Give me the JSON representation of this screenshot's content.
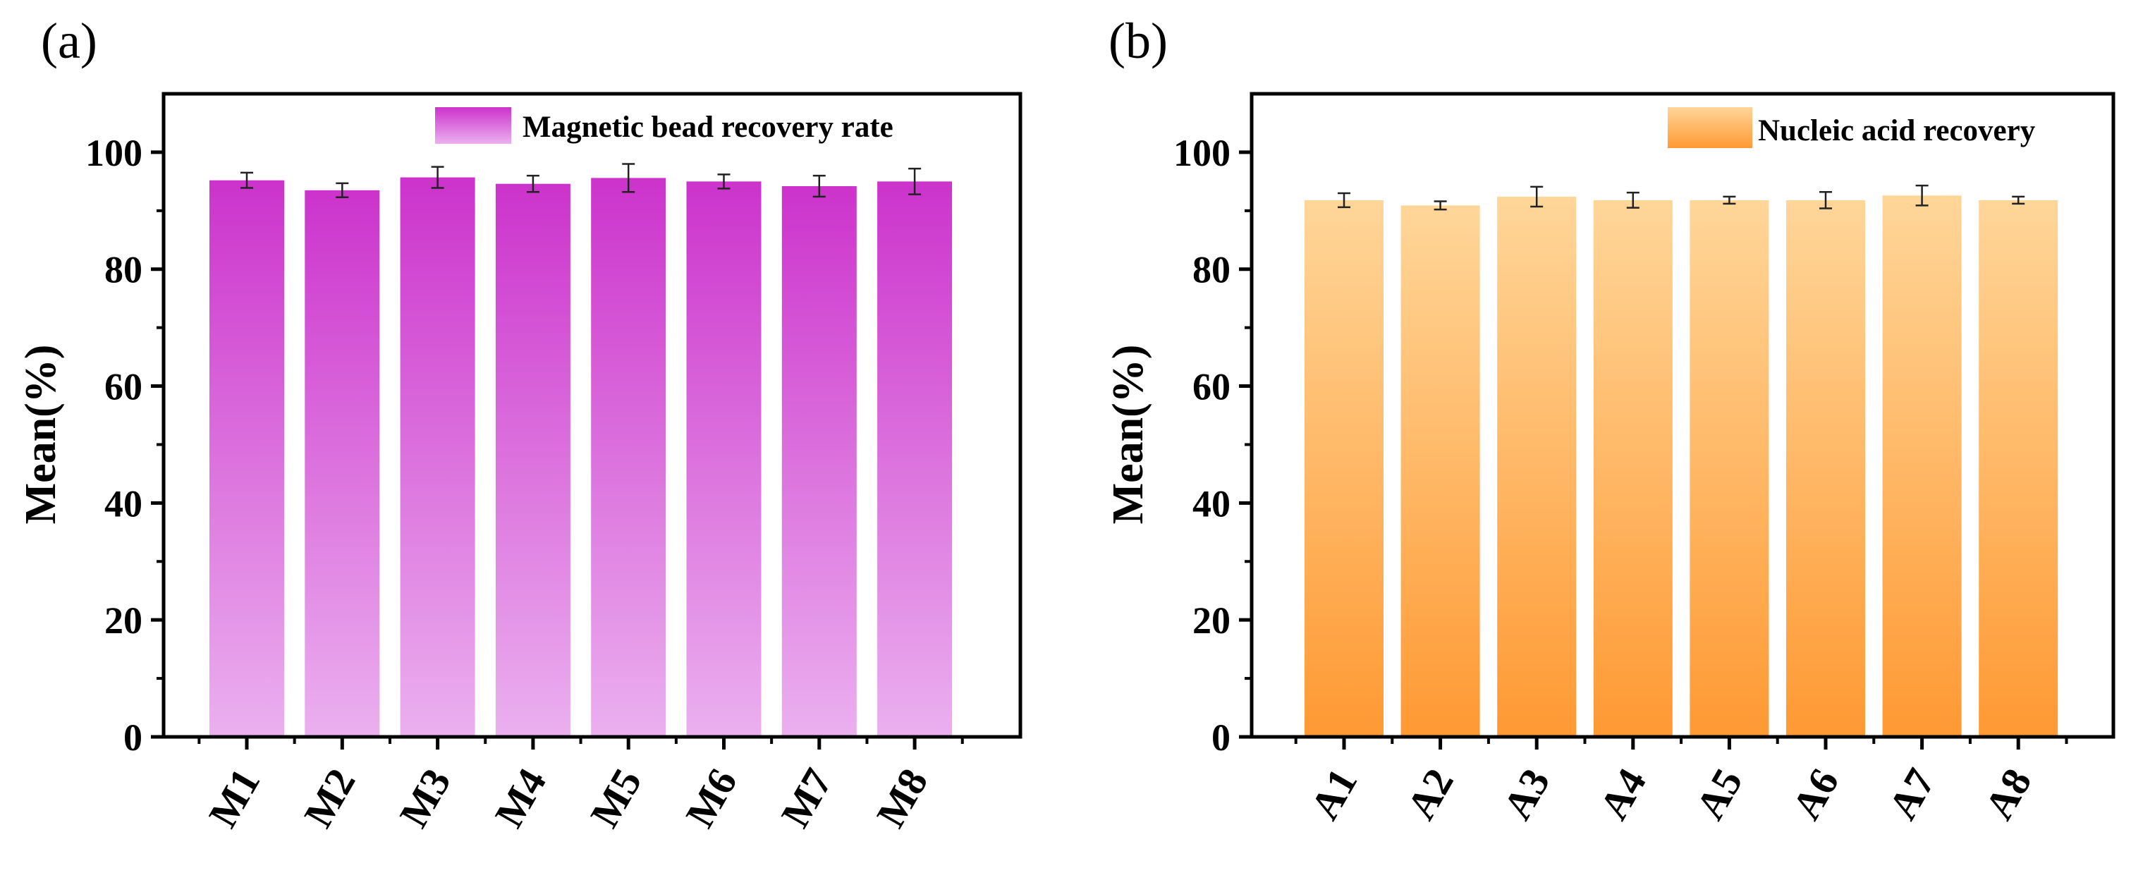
{
  "chart_data": [
    {
      "type": "bar",
      "panel_label": "(a)",
      "categories": [
        "M1",
        "M2",
        "M3",
        "M4",
        "M5",
        "M6",
        "M7",
        "M8"
      ],
      "values": [
        95.2,
        93.5,
        95.7,
        94.6,
        95.6,
        95.0,
        94.2,
        95.0
      ],
      "errors": [
        1.3,
        1.2,
        1.8,
        1.4,
        2.4,
        1.2,
        1.8,
        2.2
      ],
      "legend": "Magnetic bead recovery rate",
      "legend_position": "top-right",
      "xlabel": "",
      "ylabel": "Mean(%)",
      "ylim": [
        0,
        110
      ],
      "yticks": [
        0,
        20,
        40,
        60,
        80,
        100
      ],
      "grid": false,
      "colors": {
        "top": "#cc33cc",
        "bottom": "#ebb0ef"
      }
    },
    {
      "type": "bar",
      "panel_label": "(b)",
      "categories": [
        "A1",
        "A2",
        "A3",
        "A4",
        "A5",
        "A6",
        "A7",
        "A8"
      ],
      "values": [
        91.8,
        90.9,
        92.4,
        91.8,
        91.8,
        91.8,
        92.6,
        91.8
      ],
      "errors": [
        1.2,
        0.7,
        1.7,
        1.3,
        0.6,
        1.4,
        1.7,
        0.6
      ],
      "legend": "Nucleic acid recovery",
      "legend_position": "top-right",
      "xlabel": "",
      "ylabel": "Mean(%)",
      "ylim": [
        0,
        110
      ],
      "yticks": [
        0,
        20,
        40,
        60,
        80,
        100
      ],
      "grid": false,
      "colors": {
        "top": "#ffd699",
        "bottom": "#ff9933"
      }
    }
  ]
}
